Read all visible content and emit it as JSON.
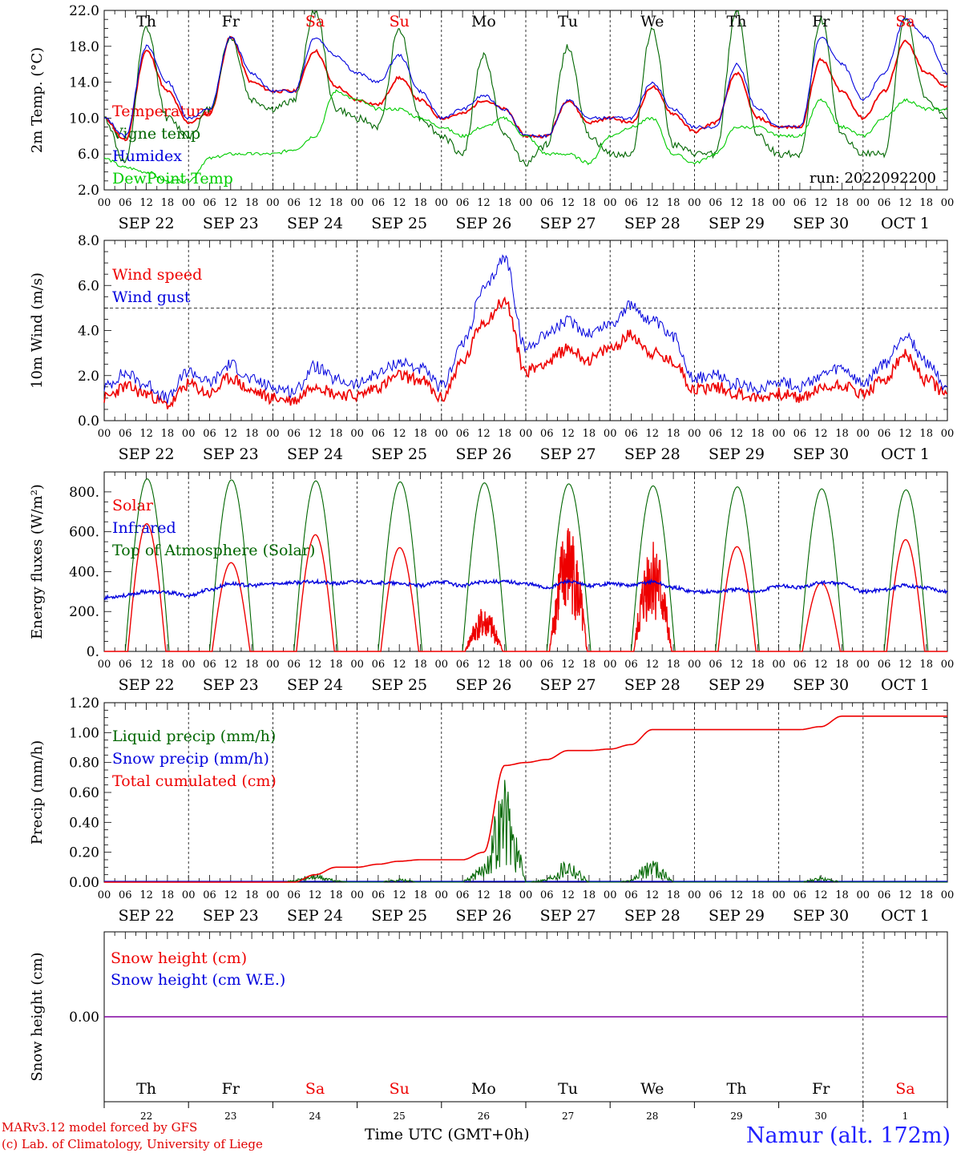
{
  "footer": {
    "model": "MARv3.12 model forced by GFS",
    "lab": "(c) Lab. of Climatology, University of Liege",
    "station": "Namur (alt. 172m)",
    "xlabel": "Time UTC (GMT+0h)"
  },
  "colors": {
    "red": "#ee0000",
    "blue": "#0000dd",
    "green": "#006600",
    "lightgreen": "#00cc00",
    "purple": "#8000a0"
  },
  "chart_data": [
    {
      "type": "line",
      "ylabel": "2m Temp. (°C)",
      "ylim": [
        2,
        22
      ],
      "yticks": [
        "2.0",
        "6.0",
        "10.0",
        "14.0",
        "18.0",
        "22.0"
      ],
      "weekdays": [
        "Th",
        "Fr",
        "Sa",
        "Su",
        "Mo",
        "Tu",
        "We",
        "Th",
        "Fr",
        "Sa"
      ],
      "weekday_colors": [
        "#000",
        "#000",
        "#ee0000",
        "#ee0000",
        "#000",
        "#000",
        "#000",
        "#000",
        "#000",
        "#ee0000"
      ],
      "run_label": "run: 2022092200",
      "x_days": [
        0,
        0.25,
        0.5,
        0.75,
        1,
        1.25,
        1.5,
        1.75,
        2,
        2.25,
        2.5,
        2.75,
        3,
        3.25,
        3.5,
        3.75,
        4,
        4.25,
        4.5,
        4.75,
        5,
        5.25,
        5.5,
        5.75,
        6,
        6.25,
        6.5,
        6.75,
        7,
        7.25,
        7.5,
        7.75,
        8,
        8.25,
        8.5,
        8.75,
        9,
        9.25,
        9.5,
        9.75,
        10
      ],
      "series": [
        {
          "name": "Temperature",
          "color": "#ee0000",
          "values": [
            10,
            7.5,
            17.5,
            13,
            9.5,
            10.5,
            19,
            14,
            13,
            13,
            17.5,
            13.5,
            12,
            11.5,
            14.5,
            12,
            10,
            10.5,
            12,
            11,
            8,
            8,
            12,
            9.5,
            10,
            9.5,
            13.5,
            10.5,
            8.5,
            9.5,
            15,
            10,
            9,
            9,
            16.5,
            13,
            10,
            13,
            18.5,
            15,
            13.5
          ]
        },
        {
          "name": "Vigne temp",
          "color": "#006600",
          "values": [
            10,
            5,
            20,
            10,
            8,
            11,
            19,
            12,
            11,
            12,
            22,
            11,
            10,
            9,
            20,
            10,
            8,
            6,
            17,
            8,
            5,
            7,
            18,
            8,
            6,
            6,
            20,
            7,
            6,
            6,
            22,
            8,
            6,
            6,
            21,
            8,
            6,
            6,
            21,
            12,
            10
          ]
        },
        {
          "name": "Humidex",
          "color": "#0000dd",
          "values": [
            10,
            8,
            18,
            14,
            10,
            11,
            19,
            15,
            13,
            13,
            19,
            17,
            15,
            14,
            17,
            13,
            10,
            11,
            12.5,
            11,
            8,
            8,
            12,
            10,
            10,
            10,
            14,
            11,
            9,
            9,
            16,
            11,
            9,
            9,
            19,
            16,
            12,
            15,
            21,
            19,
            15
          ]
        },
        {
          "name": "DewPoint Temp",
          "color": "#00cc00",
          "values": [
            5.5,
            4.5,
            4,
            3,
            3,
            5.5,
            6,
            6,
            6,
            6.5,
            8,
            13,
            12,
            11,
            11,
            10,
            9,
            8,
            9,
            10,
            8,
            6,
            6,
            5,
            8,
            9,
            10,
            6,
            5,
            6,
            9,
            9,
            8,
            8,
            12,
            9,
            8,
            10,
            12,
            11,
            11
          ]
        }
      ]
    },
    {
      "type": "line",
      "ylabel": "10m Wind (m/s)",
      "ylim": [
        0,
        8
      ],
      "yticks": [
        "0.0",
        "2.0",
        "4.0",
        "6.0",
        "8.0"
      ],
      "hline": 5,
      "x_days": [
        0,
        0.25,
        0.5,
        0.75,
        1,
        1.25,
        1.5,
        1.75,
        2,
        2.25,
        2.5,
        2.75,
        3,
        3.25,
        3.5,
        3.75,
        4,
        4.25,
        4.5,
        4.75,
        5,
        5.25,
        5.5,
        5.75,
        6,
        6.25,
        6.5,
        6.75,
        7,
        7.25,
        7.5,
        7.75,
        8,
        8.25,
        8.5,
        8.75,
        9,
        9.25,
        9.5,
        9.75,
        10
      ],
      "series": [
        {
          "name": "Wind speed",
          "color": "#ee0000",
          "values": [
            1,
            1.5,
            1.2,
            0.7,
            1.6,
            1.2,
            1.9,
            1.3,
            1,
            0.9,
            1.6,
            1.2,
            1.1,
            1.5,
            2,
            1.8,
            1,
            2.6,
            4.4,
            5.3,
            2.2,
            2.6,
            3.2,
            2.7,
            3.2,
            3.8,
            3,
            2.6,
            1.4,
            1.5,
            1.2,
            1,
            1.2,
            1,
            1.4,
            1.6,
            1.2,
            1.8,
            2.9,
            1.8,
            1.2
          ]
        },
        {
          "name": "Wind gust",
          "color": "#0000dd",
          "values": [
            1.5,
            2.1,
            1.6,
            1,
            2.2,
            1.7,
            2.5,
            1.8,
            1.5,
            1.3,
            2.4,
            1.8,
            1.6,
            2.1,
            2.6,
            2.3,
            1.5,
            3.4,
            5.8,
            7.2,
            3.2,
            3.9,
            4.4,
            3.9,
            4.3,
            5.1,
            4.4,
            3.7,
            1.9,
            2,
            1.6,
            1.4,
            1.8,
            1.5,
            2,
            2.3,
            1.6,
            2.5,
            3.8,
            2.6,
            1.5
          ]
        }
      ]
    },
    {
      "type": "line",
      "ylabel": "Energy fluxes (W/m²)",
      "ylim": [
        0,
        900
      ],
      "yticks": [
        "0.",
        "200.",
        "400.",
        "600.",
        "800."
      ],
      "x_days": [
        0,
        0.25,
        0.5,
        0.75,
        1,
        1.25,
        1.5,
        1.75,
        2,
        2.25,
        2.5,
        2.75,
        3,
        3.25,
        3.5,
        3.75,
        4,
        4.25,
        4.5,
        4.75,
        5,
        5.25,
        5.5,
        5.75,
        6,
        6.25,
        6.5,
        6.75,
        7,
        7.25,
        7.5,
        7.75,
        8,
        8.25,
        8.5,
        8.75,
        9,
        9.25,
        9.5,
        9.75,
        10
      ],
      "toa_peaks": [
        865,
        860,
        855,
        850,
        845,
        840,
        830,
        825,
        815,
        810
      ],
      "solar_peaks": [
        640,
        445,
        585,
        520,
        200,
        600,
        540,
        525,
        345,
        560
      ],
      "series": [
        {
          "name": "Solar",
          "color": "#ee0000",
          "values": [
            0,
            0,
            640,
            0,
            0,
            0,
            445,
            0,
            0,
            0,
            585,
            0,
            0,
            0,
            520,
            0,
            0,
            0,
            200,
            0,
            0,
            0,
            600,
            0,
            0,
            0,
            540,
            0,
            0,
            0,
            525,
            0,
            0,
            0,
            345,
            0,
            0,
            0,
            560,
            0,
            0
          ]
        },
        {
          "name": "Infrared",
          "color": "#0000dd",
          "values": [
            270,
            280,
            300,
            295,
            280,
            310,
            340,
            330,
            340,
            345,
            350,
            340,
            350,
            345,
            340,
            330,
            350,
            330,
            350,
            350,
            340,
            320,
            350,
            330,
            340,
            330,
            350,
            320,
            300,
            300,
            310,
            300,
            330,
            320,
            345,
            340,
            300,
            310,
            330,
            320,
            300
          ]
        },
        {
          "name": "Top of Atmosphere (Solar)",
          "color": "#006600",
          "values": [
            0,
            0,
            865,
            0,
            0,
            0,
            860,
            0,
            0,
            0,
            855,
            0,
            0,
            0,
            850,
            0,
            0,
            0,
            845,
            0,
            0,
            0,
            840,
            0,
            0,
            0,
            830,
            0,
            0,
            0,
            825,
            0,
            0,
            0,
            815,
            0,
            0,
            0,
            810,
            0,
            0
          ]
        }
      ]
    },
    {
      "type": "line",
      "ylabel": "Precip (mm/h)",
      "ylim": [
        0,
        1.2
      ],
      "yticks": [
        "0.00",
        "0.20",
        "0.40",
        "0.60",
        "0.80",
        "1.00",
        "1.20"
      ],
      "x_days": [
        0,
        0.25,
        0.5,
        0.75,
        1,
        1.25,
        1.5,
        1.75,
        2,
        2.25,
        2.5,
        2.75,
        3,
        3.25,
        3.5,
        3.75,
        4,
        4.25,
        4.5,
        4.75,
        5,
        5.25,
        5.5,
        5.75,
        6,
        6.25,
        6.5,
        6.75,
        7,
        7.25,
        7.5,
        7.75,
        8,
        8.25,
        8.5,
        8.75,
        9,
        9.25,
        9.5,
        9.75,
        10
      ],
      "series": [
        {
          "name": "Liquid precip (mm/h)",
          "color": "#006600",
          "values": [
            0,
            0,
            0,
            0,
            0,
            0,
            0,
            0,
            0,
            0.01,
            0.05,
            0.01,
            0,
            0,
            0.02,
            0,
            0,
            0,
            0.1,
            0.6,
            0,
            0.02,
            0.15,
            0,
            0,
            0.01,
            0.15,
            0,
            0,
            0,
            0,
            0,
            0,
            0,
            0.03,
            0,
            0,
            0,
            0,
            0,
            0
          ]
        },
        {
          "name": "Snow precip (mm/h)",
          "color": "#0000dd",
          "values": [
            0,
            0,
            0,
            0,
            0,
            0,
            0,
            0,
            0,
            0,
            0,
            0,
            0,
            0,
            0,
            0,
            0,
            0,
            0,
            0,
            0,
            0,
            0,
            0,
            0,
            0,
            0,
            0,
            0,
            0,
            0,
            0,
            0,
            0,
            0,
            0,
            0,
            0,
            0,
            0,
            0
          ]
        },
        {
          "name": "Total cumulated (cm)",
          "color": "#ee0000",
          "values": [
            0,
            0,
            0,
            0,
            0,
            0,
            0,
            0,
            0,
            0,
            0.05,
            0.1,
            0.1,
            0.12,
            0.14,
            0.15,
            0.15,
            0.15,
            0.2,
            0.78,
            0.8,
            0.82,
            0.88,
            0.88,
            0.89,
            0.92,
            1.02,
            1.02,
            1.02,
            1.02,
            1.02,
            1.02,
            1.02,
            1.02,
            1.04,
            1.11,
            1.11,
            1.11,
            1.11,
            1.11,
            1.11
          ]
        }
      ]
    },
    {
      "type": "line",
      "ylabel": "Snow height (cm)",
      "ylim": [
        -1,
        1
      ],
      "yticks": [
        "0.00"
      ],
      "weekdays": [
        "Th",
        "Fr",
        "Sa",
        "Su",
        "Mo",
        "Tu",
        "We",
        "Th",
        "Fr",
        "Sa"
      ],
      "weekday_colors": [
        "#000",
        "#000",
        "#ee0000",
        "#ee0000",
        "#000",
        "#000",
        "#000",
        "#000",
        "#000",
        "#ee0000"
      ],
      "day_numbers": [
        "22",
        "23",
        "24",
        "25",
        "26",
        "27",
        "28",
        "29",
        "30",
        "1"
      ],
      "series": [
        {
          "name": "Snow height (cm)",
          "color": "#ee0000",
          "values": [
            0,
            0
          ]
        },
        {
          "name": "Snow height (cm W.E.)",
          "color": "#0000dd",
          "values": [
            0,
            0
          ]
        }
      ]
    }
  ],
  "x_axis": {
    "hours": [
      "00",
      "06",
      "12",
      "18"
    ],
    "final_hour": "00",
    "dates": [
      "SEP 22",
      "SEP 23",
      "SEP 24",
      "SEP 25",
      "SEP 26",
      "SEP 27",
      "SEP 28",
      "SEP 29",
      "SEP 30",
      "OCT  1"
    ]
  }
}
